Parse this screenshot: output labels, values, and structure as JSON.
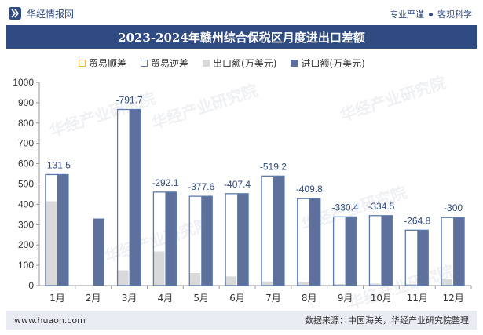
{
  "header": {
    "brand": "华经情报网",
    "tagline_left": "专业严谨",
    "tagline_right": "客观科学"
  },
  "watermark": "华经产业研究院",
  "footer": {
    "website": "www.huaon.com",
    "source": "数据来源：中国海关，华经产业研究院整理"
  },
  "colors": {
    "brand": "#2f4b82",
    "export": "#d9d9d9",
    "import": "#5e719c",
    "surplus": "#e8b93c",
    "deficit_outline": "#5b7bb0"
  },
  "chart_data": {
    "type": "bar",
    "title": "2023-2024年赣州综合保税区月度进出口差额",
    "categories": [
      "1月",
      "2月",
      "3月",
      "4月",
      "5月",
      "6月",
      "7月",
      "8月",
      "9月",
      "10月",
      "11月",
      "12月"
    ],
    "series": [
      {
        "name": "贸易顺差",
        "values": [
          null,
          null,
          null,
          null,
          null,
          null,
          null,
          null,
          null,
          null,
          null,
          null
        ]
      },
      {
        "name": "贸易逆差",
        "values": [
          -131.5,
          null,
          -791.7,
          -292.1,
          -377.6,
          -407.4,
          -519.2,
          -409.8,
          -330.4,
          -334.5,
          -264.8,
          -300
        ]
      },
      {
        "name": "出口额(万美元)",
        "values": [
          415,
          0,
          75,
          168,
          62,
          45,
          20,
          18,
          8,
          10,
          8,
          35
        ]
      },
      {
        "name": "进口额(万美元)",
        "values": [
          546.5,
          330,
          866.7,
          460.1,
          439.6,
          452.4,
          539.2,
          427.8,
          338.4,
          344.5,
          272.8,
          335
        ]
      }
    ],
    "deficit_labels": [
      "-131.5",
      "",
      "-791.7",
      "-292.1",
      "-377.6",
      "-407.4",
      "-519.2",
      "-409.8",
      "-330.4",
      "-334.5",
      "-264.8",
      "-300"
    ],
    "ylim": [
      0,
      1000
    ],
    "yticks": [
      "0",
      "100",
      "200",
      "300",
      "400",
      "500",
      "600",
      "700",
      "800",
      "900",
      "1000"
    ],
    "grid": false,
    "legend": "top"
  }
}
